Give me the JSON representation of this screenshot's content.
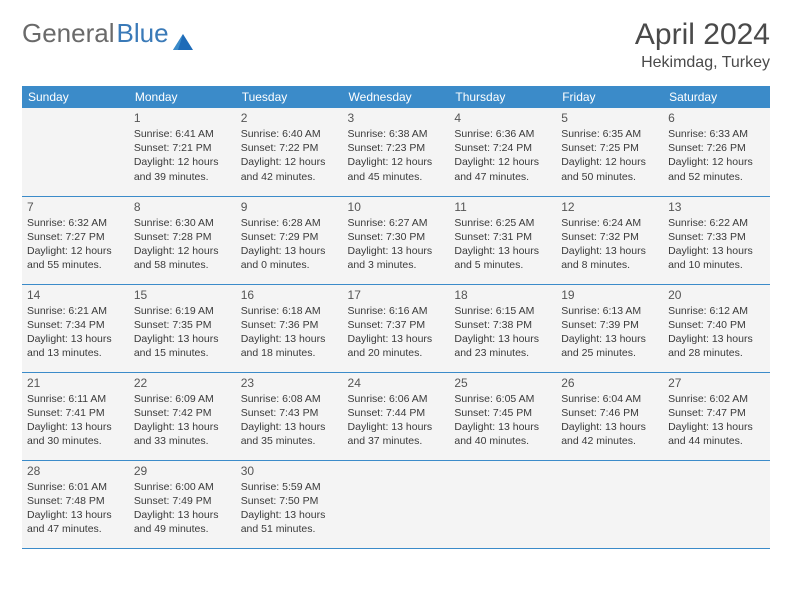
{
  "brand": {
    "part1": "General",
    "part2": "Blue"
  },
  "title": "April 2024",
  "location": "Hekimdag, Turkey",
  "colors": {
    "header_bg": "#3b8bc9",
    "header_text": "#ffffff",
    "cell_bg": "#f4f4f4",
    "border": "#3b8bc9",
    "text": "#3a3a3a"
  },
  "weekdays": [
    "Sunday",
    "Monday",
    "Tuesday",
    "Wednesday",
    "Thursday",
    "Friday",
    "Saturday"
  ],
  "weeks": [
    [
      null,
      {
        "day": "1",
        "sunrise": "Sunrise: 6:41 AM",
        "sunset": "Sunset: 7:21 PM",
        "daylight1": "Daylight: 12 hours",
        "daylight2": "and 39 minutes."
      },
      {
        "day": "2",
        "sunrise": "Sunrise: 6:40 AM",
        "sunset": "Sunset: 7:22 PM",
        "daylight1": "Daylight: 12 hours",
        "daylight2": "and 42 minutes."
      },
      {
        "day": "3",
        "sunrise": "Sunrise: 6:38 AM",
        "sunset": "Sunset: 7:23 PM",
        "daylight1": "Daylight: 12 hours",
        "daylight2": "and 45 minutes."
      },
      {
        "day": "4",
        "sunrise": "Sunrise: 6:36 AM",
        "sunset": "Sunset: 7:24 PM",
        "daylight1": "Daylight: 12 hours",
        "daylight2": "and 47 minutes."
      },
      {
        "day": "5",
        "sunrise": "Sunrise: 6:35 AM",
        "sunset": "Sunset: 7:25 PM",
        "daylight1": "Daylight: 12 hours",
        "daylight2": "and 50 minutes."
      },
      {
        "day": "6",
        "sunrise": "Sunrise: 6:33 AM",
        "sunset": "Sunset: 7:26 PM",
        "daylight1": "Daylight: 12 hours",
        "daylight2": "and 52 minutes."
      }
    ],
    [
      {
        "day": "7",
        "sunrise": "Sunrise: 6:32 AM",
        "sunset": "Sunset: 7:27 PM",
        "daylight1": "Daylight: 12 hours",
        "daylight2": "and 55 minutes."
      },
      {
        "day": "8",
        "sunrise": "Sunrise: 6:30 AM",
        "sunset": "Sunset: 7:28 PM",
        "daylight1": "Daylight: 12 hours",
        "daylight2": "and 58 minutes."
      },
      {
        "day": "9",
        "sunrise": "Sunrise: 6:28 AM",
        "sunset": "Sunset: 7:29 PM",
        "daylight1": "Daylight: 13 hours",
        "daylight2": "and 0 minutes."
      },
      {
        "day": "10",
        "sunrise": "Sunrise: 6:27 AM",
        "sunset": "Sunset: 7:30 PM",
        "daylight1": "Daylight: 13 hours",
        "daylight2": "and 3 minutes."
      },
      {
        "day": "11",
        "sunrise": "Sunrise: 6:25 AM",
        "sunset": "Sunset: 7:31 PM",
        "daylight1": "Daylight: 13 hours",
        "daylight2": "and 5 minutes."
      },
      {
        "day": "12",
        "sunrise": "Sunrise: 6:24 AM",
        "sunset": "Sunset: 7:32 PM",
        "daylight1": "Daylight: 13 hours",
        "daylight2": "and 8 minutes."
      },
      {
        "day": "13",
        "sunrise": "Sunrise: 6:22 AM",
        "sunset": "Sunset: 7:33 PM",
        "daylight1": "Daylight: 13 hours",
        "daylight2": "and 10 minutes."
      }
    ],
    [
      {
        "day": "14",
        "sunrise": "Sunrise: 6:21 AM",
        "sunset": "Sunset: 7:34 PM",
        "daylight1": "Daylight: 13 hours",
        "daylight2": "and 13 minutes."
      },
      {
        "day": "15",
        "sunrise": "Sunrise: 6:19 AM",
        "sunset": "Sunset: 7:35 PM",
        "daylight1": "Daylight: 13 hours",
        "daylight2": "and 15 minutes."
      },
      {
        "day": "16",
        "sunrise": "Sunrise: 6:18 AM",
        "sunset": "Sunset: 7:36 PM",
        "daylight1": "Daylight: 13 hours",
        "daylight2": "and 18 minutes."
      },
      {
        "day": "17",
        "sunrise": "Sunrise: 6:16 AM",
        "sunset": "Sunset: 7:37 PM",
        "daylight1": "Daylight: 13 hours",
        "daylight2": "and 20 minutes."
      },
      {
        "day": "18",
        "sunrise": "Sunrise: 6:15 AM",
        "sunset": "Sunset: 7:38 PM",
        "daylight1": "Daylight: 13 hours",
        "daylight2": "and 23 minutes."
      },
      {
        "day": "19",
        "sunrise": "Sunrise: 6:13 AM",
        "sunset": "Sunset: 7:39 PM",
        "daylight1": "Daylight: 13 hours",
        "daylight2": "and 25 minutes."
      },
      {
        "day": "20",
        "sunrise": "Sunrise: 6:12 AM",
        "sunset": "Sunset: 7:40 PM",
        "daylight1": "Daylight: 13 hours",
        "daylight2": "and 28 minutes."
      }
    ],
    [
      {
        "day": "21",
        "sunrise": "Sunrise: 6:11 AM",
        "sunset": "Sunset: 7:41 PM",
        "daylight1": "Daylight: 13 hours",
        "daylight2": "and 30 minutes."
      },
      {
        "day": "22",
        "sunrise": "Sunrise: 6:09 AM",
        "sunset": "Sunset: 7:42 PM",
        "daylight1": "Daylight: 13 hours",
        "daylight2": "and 33 minutes."
      },
      {
        "day": "23",
        "sunrise": "Sunrise: 6:08 AM",
        "sunset": "Sunset: 7:43 PM",
        "daylight1": "Daylight: 13 hours",
        "daylight2": "and 35 minutes."
      },
      {
        "day": "24",
        "sunrise": "Sunrise: 6:06 AM",
        "sunset": "Sunset: 7:44 PM",
        "daylight1": "Daylight: 13 hours",
        "daylight2": "and 37 minutes."
      },
      {
        "day": "25",
        "sunrise": "Sunrise: 6:05 AM",
        "sunset": "Sunset: 7:45 PM",
        "daylight1": "Daylight: 13 hours",
        "daylight2": "and 40 minutes."
      },
      {
        "day": "26",
        "sunrise": "Sunrise: 6:04 AM",
        "sunset": "Sunset: 7:46 PM",
        "daylight1": "Daylight: 13 hours",
        "daylight2": "and 42 minutes."
      },
      {
        "day": "27",
        "sunrise": "Sunrise: 6:02 AM",
        "sunset": "Sunset: 7:47 PM",
        "daylight1": "Daylight: 13 hours",
        "daylight2": "and 44 minutes."
      }
    ],
    [
      {
        "day": "28",
        "sunrise": "Sunrise: 6:01 AM",
        "sunset": "Sunset: 7:48 PM",
        "daylight1": "Daylight: 13 hours",
        "daylight2": "and 47 minutes."
      },
      {
        "day": "29",
        "sunrise": "Sunrise: 6:00 AM",
        "sunset": "Sunset: 7:49 PM",
        "daylight1": "Daylight: 13 hours",
        "daylight2": "and 49 minutes."
      },
      {
        "day": "30",
        "sunrise": "Sunrise: 5:59 AM",
        "sunset": "Sunset: 7:50 PM",
        "daylight1": "Daylight: 13 hours",
        "daylight2": "and 51 minutes."
      },
      null,
      null,
      null,
      null
    ]
  ]
}
